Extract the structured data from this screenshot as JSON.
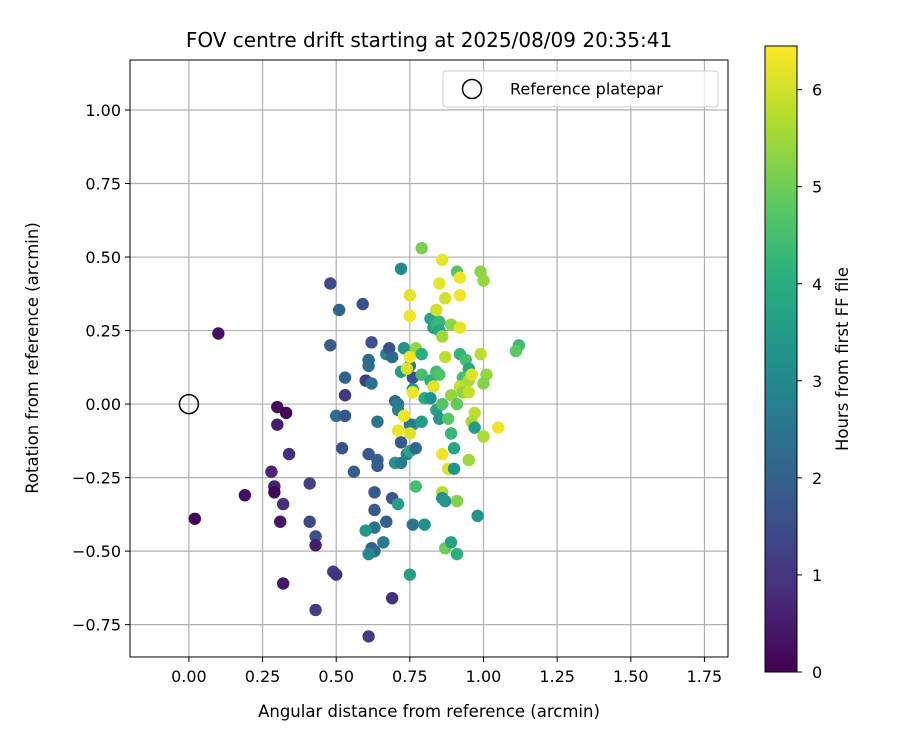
{
  "chart_data": {
    "type": "scatter",
    "title": "FOV centre drift starting at 2025/08/09 20:35:41",
    "xlabel": "Angular distance from reference (arcmin)",
    "ylabel": "Rotation from reference (arcmin)",
    "xlim": [
      -0.2,
      1.83
    ],
    "ylim": [
      -0.86,
      1.17
    ],
    "xticks": [
      0.0,
      0.25,
      0.5,
      0.75,
      1.0,
      1.25,
      1.5,
      1.75
    ],
    "xtick_labels": [
      "0.00",
      "0.25",
      "0.50",
      "0.75",
      "1.00",
      "1.25",
      "1.50",
      "1.75"
    ],
    "yticks": [
      -0.75,
      -0.5,
      -0.25,
      0.0,
      0.25,
      0.5,
      0.75,
      1.0
    ],
    "ytick_labels": [
      "−0.75",
      "−0.50",
      "−0.25",
      "0.00",
      "0.25",
      "0.50",
      "0.75",
      "1.00"
    ],
    "grid": true,
    "legend": {
      "position": "top-right",
      "entries": [
        "Reference platepar"
      ]
    },
    "reference_point": {
      "x": 0.0,
      "y": 0.0
    },
    "colorbar": {
      "label": "Hours from first FF file",
      "range": [
        0,
        6.45
      ],
      "ticks": [
        0,
        1,
        2,
        3,
        4,
        5,
        6
      ],
      "colormap": "viridis"
    },
    "points": [
      {
        "x": 0.1,
        "y": 0.24,
        "c": 0.3
      },
      {
        "x": 0.3,
        "y": -0.01,
        "c": 0.2
      },
      {
        "x": 0.3,
        "y": -0.07,
        "c": 0.5
      },
      {
        "x": 0.33,
        "y": -0.03,
        "c": 0.1
      },
      {
        "x": 0.02,
        "y": -0.39,
        "c": 0.1
      },
      {
        "x": 0.19,
        "y": -0.31,
        "c": 0.2
      },
      {
        "x": 0.28,
        "y": -0.23,
        "c": 0.7
      },
      {
        "x": 0.29,
        "y": -0.28,
        "c": 0.6
      },
      {
        "x": 0.29,
        "y": -0.3,
        "c": 0.1
      },
      {
        "x": 0.32,
        "y": -0.34,
        "c": 0.9
      },
      {
        "x": 0.31,
        "y": -0.4,
        "c": 0.4
      },
      {
        "x": 0.34,
        "y": -0.17,
        "c": 0.8
      },
      {
        "x": 0.32,
        "y": -0.61,
        "c": 0.4
      },
      {
        "x": 0.41,
        "y": -0.27,
        "c": 1.3
      },
      {
        "x": 0.41,
        "y": -0.4,
        "c": 1.4
      },
      {
        "x": 0.43,
        "y": -0.45,
        "c": 1.6
      },
      {
        "x": 0.43,
        "y": -0.48,
        "c": 0.5
      },
      {
        "x": 0.43,
        "y": -0.7,
        "c": 1.2
      },
      {
        "x": 0.49,
        "y": -0.57,
        "c": 1.2
      },
      {
        "x": 0.5,
        "y": -0.58,
        "c": 0.9
      },
      {
        "x": 0.48,
        "y": 0.41,
        "c": 1.5
      },
      {
        "x": 0.48,
        "y": 0.2,
        "c": 1.9
      },
      {
        "x": 0.51,
        "y": 0.32,
        "c": 2.1
      },
      {
        "x": 0.53,
        "y": 0.09,
        "c": 2.1
      },
      {
        "x": 0.53,
        "y": 0.03,
        "c": 1.0
      },
      {
        "x": 0.5,
        "y": -0.04,
        "c": 2.3
      },
      {
        "x": 0.53,
        "y": -0.04,
        "c": 1.7
      },
      {
        "x": 0.52,
        "y": -0.15,
        "c": 1.6
      },
      {
        "x": 0.56,
        "y": -0.23,
        "c": 1.9
      },
      {
        "x": 0.59,
        "y": 0.34,
        "c": 1.6
      },
      {
        "x": 0.6,
        "y": 0.08,
        "c": 1.2
      },
      {
        "x": 0.61,
        "y": 0.15,
        "c": 2.2
      },
      {
        "x": 0.61,
        "y": 0.13,
        "c": 2.3
      },
      {
        "x": 0.62,
        "y": 0.07,
        "c": 2.4
      },
      {
        "x": 0.62,
        "y": 0.21,
        "c": 1.6
      },
      {
        "x": 0.61,
        "y": -0.17,
        "c": 1.8
      },
      {
        "x": 0.63,
        "y": -0.3,
        "c": 1.8
      },
      {
        "x": 0.63,
        "y": -0.36,
        "c": 1.8
      },
      {
        "x": 0.64,
        "y": -0.19,
        "c": 2.0
      },
      {
        "x": 0.64,
        "y": -0.21,
        "c": 1.9
      },
      {
        "x": 0.64,
        "y": -0.06,
        "c": 2.5
      },
      {
        "x": 0.63,
        "y": -0.42,
        "c": 2.4
      },
      {
        "x": 0.6,
        "y": -0.43,
        "c": 3.4
      },
      {
        "x": 0.62,
        "y": -0.49,
        "c": 2.0
      },
      {
        "x": 0.63,
        "y": -0.5,
        "c": 2.2
      },
      {
        "x": 0.61,
        "y": -0.51,
        "c": 3.0
      },
      {
        "x": 0.66,
        "y": -0.47,
        "c": 2.6
      },
      {
        "x": 0.67,
        "y": -0.4,
        "c": 2.0
      },
      {
        "x": 0.69,
        "y": -0.32,
        "c": 1.7
      },
      {
        "x": 0.61,
        "y": -0.79,
        "c": 1.2
      },
      {
        "x": 0.69,
        "y": -0.66,
        "c": 0.9
      },
      {
        "x": 0.67,
        "y": 0.17,
        "c": 2.9
      },
      {
        "x": 0.68,
        "y": 0.19,
        "c": 1.6
      },
      {
        "x": 0.69,
        "y": 0.16,
        "c": 2.1
      },
      {
        "x": 0.7,
        "y": 0.01,
        "c": 2.3
      },
      {
        "x": 0.71,
        "y": 0.0,
        "c": 2.6
      },
      {
        "x": 0.71,
        "y": -0.02,
        "c": 2.8
      },
      {
        "x": 0.72,
        "y": -0.13,
        "c": 1.8
      },
      {
        "x": 0.7,
        "y": -0.2,
        "c": 3.3
      },
      {
        "x": 0.72,
        "y": -0.2,
        "c": 2.7
      },
      {
        "x": 0.74,
        "y": -0.17,
        "c": 2.8
      },
      {
        "x": 0.75,
        "y": -0.16,
        "c": 3.8
      },
      {
        "x": 0.71,
        "y": -0.34,
        "c": 3.6
      },
      {
        "x": 0.72,
        "y": 0.46,
        "c": 3.0
      },
      {
        "x": 0.73,
        "y": 0.19,
        "c": 3.3
      },
      {
        "x": 0.72,
        "y": 0.11,
        "c": 3.5
      },
      {
        "x": 0.75,
        "y": 0.13,
        "c": 2.5
      },
      {
        "x": 0.76,
        "y": 0.09,
        "c": 1.6
      },
      {
        "x": 0.76,
        "y": 0.05,
        "c": 3.4
      },
      {
        "x": 0.76,
        "y": -0.07,
        "c": 3.7
      },
      {
        "x": 0.75,
        "y": -0.07,
        "c": 2.6
      },
      {
        "x": 0.77,
        "y": -0.15,
        "c": 2.2
      },
      {
        "x": 0.77,
        "y": -0.28,
        "c": 4.5
      },
      {
        "x": 0.76,
        "y": -0.41,
        "c": 2.5
      },
      {
        "x": 0.8,
        "y": -0.41,
        "c": 3.2
      },
      {
        "x": 0.75,
        "y": -0.58,
        "c": 3.6
      },
      {
        "x": 0.79,
        "y": 0.53,
        "c": 5.1
      },
      {
        "x": 0.75,
        "y": 0.37,
        "c": 6.2
      },
      {
        "x": 0.75,
        "y": 0.3,
        "c": 6.3
      },
      {
        "x": 0.77,
        "y": 0.19,
        "c": 5.4
      },
      {
        "x": 0.75,
        "y": 0.16,
        "c": 6.3
      },
      {
        "x": 0.79,
        "y": 0.17,
        "c": 4.0
      },
      {
        "x": 0.79,
        "y": 0.1,
        "c": 4.5
      },
      {
        "x": 0.8,
        "y": 0.02,
        "c": 4.0
      },
      {
        "x": 0.79,
        "y": -0.06,
        "c": 3.6
      },
      {
        "x": 0.74,
        "y": 0.12,
        "c": 6.1
      },
      {
        "x": 0.76,
        "y": 0.04,
        "c": 6.3
      },
      {
        "x": 0.73,
        "y": -0.04,
        "c": 6.3
      },
      {
        "x": 0.71,
        "y": -0.09,
        "c": 6.3
      },
      {
        "x": 0.75,
        "y": -0.1,
        "c": 6.1
      },
      {
        "x": 0.82,
        "y": 0.29,
        "c": 3.8
      },
      {
        "x": 0.83,
        "y": 0.26,
        "c": 3.6
      },
      {
        "x": 0.84,
        "y": 0.27,
        "c": 4.2
      },
      {
        "x": 0.85,
        "y": 0.28,
        "c": 4.3
      },
      {
        "x": 0.85,
        "y": 0.25,
        "c": 3.9
      },
      {
        "x": 0.82,
        "y": 0.08,
        "c": 4.1
      },
      {
        "x": 0.84,
        "y": 0.11,
        "c": 4.4
      },
      {
        "x": 0.85,
        "y": 0.1,
        "c": 4.6
      },
      {
        "x": 0.83,
        "y": 0.06,
        "c": 6.2
      },
      {
        "x": 0.82,
        "y": 0.02,
        "c": 3.2
      },
      {
        "x": 0.84,
        "y": -0.02,
        "c": 3.7
      },
      {
        "x": 0.85,
        "y": -0.05,
        "c": 3.4
      },
      {
        "x": 0.86,
        "y": 0.0,
        "c": 4.7
      },
      {
        "x": 0.85,
        "y": 0.41,
        "c": 6.2
      },
      {
        "x": 0.86,
        "y": 0.49,
        "c": 6.2
      },
      {
        "x": 0.87,
        "y": 0.36,
        "c": 6.0
      },
      {
        "x": 0.84,
        "y": 0.32,
        "c": 6.0
      },
      {
        "x": 0.86,
        "y": 0.23,
        "c": 5.5
      },
      {
        "x": 0.87,
        "y": 0.16,
        "c": 5.8
      },
      {
        "x": 0.86,
        "y": -0.17,
        "c": 6.3
      },
      {
        "x": 0.88,
        "y": -0.22,
        "c": 6.1
      },
      {
        "x": 0.86,
        "y": -0.3,
        "c": 5.7
      },
      {
        "x": 0.86,
        "y": -0.32,
        "c": 3.1
      },
      {
        "x": 0.87,
        "y": -0.33,
        "c": 3.4
      },
      {
        "x": 0.87,
        "y": -0.49,
        "c": 5.0
      },
      {
        "x": 0.89,
        "y": -0.47,
        "c": 3.7
      },
      {
        "x": 0.91,
        "y": -0.51,
        "c": 4.1
      },
      {
        "x": 0.91,
        "y": -0.33,
        "c": 5.2
      },
      {
        "x": 0.9,
        "y": -0.22,
        "c": 3.3
      },
      {
        "x": 0.9,
        "y": -0.15,
        "c": 3.8
      },
      {
        "x": 0.89,
        "y": -0.1,
        "c": 4.3
      },
      {
        "x": 0.88,
        "y": -0.05,
        "c": 4.8
      },
      {
        "x": 0.89,
        "y": 0.27,
        "c": 5.3
      },
      {
        "x": 0.91,
        "y": 0.45,
        "c": 4.7
      },
      {
        "x": 0.92,
        "y": 0.43,
        "c": 6.3
      },
      {
        "x": 0.92,
        "y": 0.37,
        "c": 6.3
      },
      {
        "x": 0.92,
        "y": 0.26,
        "c": 6.2
      },
      {
        "x": 0.92,
        "y": 0.17,
        "c": 4.2
      },
      {
        "x": 0.94,
        "y": 0.15,
        "c": 4.5
      },
      {
        "x": 0.95,
        "y": 0.12,
        "c": 3.8
      },
      {
        "x": 0.93,
        "y": 0.09,
        "c": 4.5
      },
      {
        "x": 0.92,
        "y": 0.06,
        "c": 5.9
      },
      {
        "x": 0.95,
        "y": 0.08,
        "c": 5.6
      },
      {
        "x": 0.93,
        "y": 0.04,
        "c": 5.3
      },
      {
        "x": 0.89,
        "y": 0.03,
        "c": 5.4
      },
      {
        "x": 0.91,
        "y": 0.0,
        "c": 4.9
      },
      {
        "x": 0.95,
        "y": 0.04,
        "c": 5.9
      },
      {
        "x": 0.96,
        "y": 0.1,
        "c": 6.1
      },
      {
        "x": 0.97,
        "y": -0.03,
        "c": 5.8
      },
      {
        "x": 0.96,
        "y": -0.06,
        "c": 5.6
      },
      {
        "x": 0.97,
        "y": -0.08,
        "c": 3.5
      },
      {
        "x": 0.95,
        "y": -0.19,
        "c": 5.5
      },
      {
        "x": 0.99,
        "y": 0.45,
        "c": 5.3
      },
      {
        "x": 1.0,
        "y": 0.42,
        "c": 5.4
      },
      {
        "x": 0.99,
        "y": 0.17,
        "c": 5.8
      },
      {
        "x": 1.01,
        "y": 0.1,
        "c": 5.4
      },
      {
        "x": 1.0,
        "y": 0.07,
        "c": 5.2
      },
      {
        "x": 1.0,
        "y": -0.11,
        "c": 5.6
      },
      {
        "x": 1.05,
        "y": -0.08,
        "c": 6.3
      },
      {
        "x": 0.98,
        "y": -0.38,
        "c": 3.3
      },
      {
        "x": 1.12,
        "y": 0.2,
        "c": 4.4
      },
      {
        "x": 1.11,
        "y": 0.18,
        "c": 4.8
      }
    ]
  }
}
